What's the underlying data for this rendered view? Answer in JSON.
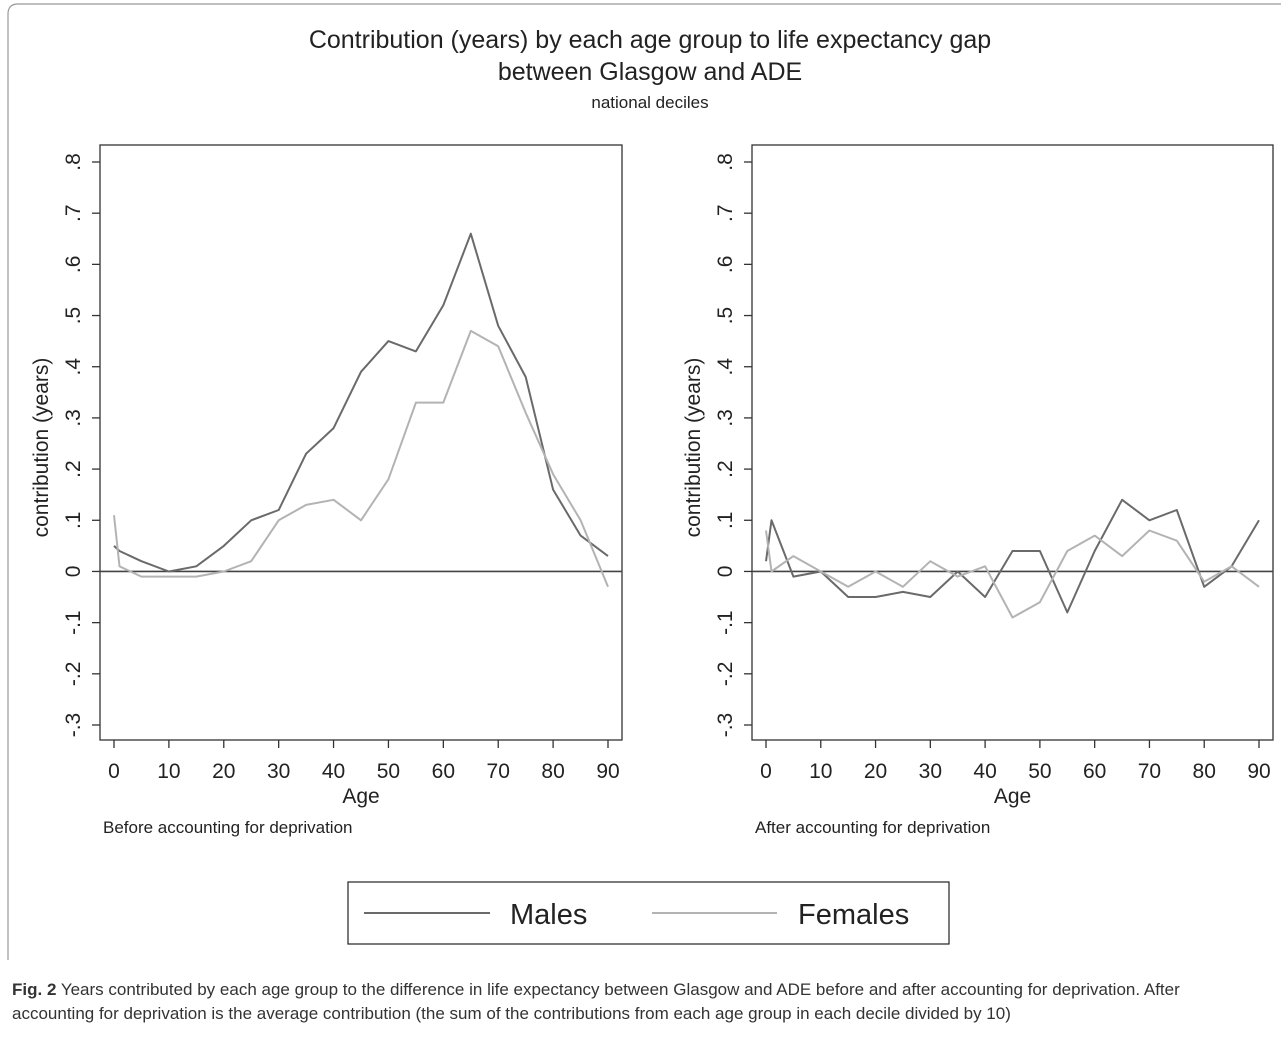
{
  "title_line1": "Contribution (years) by each age group to life expectancy gap",
  "title_line2": "between Glasgow and ADE",
  "subtitle": "national deciles",
  "legend": {
    "males": "Males",
    "females": "Females"
  },
  "caption": {
    "label": "Fig. 2",
    "text": " Years contributed by each age group to the difference in life expectancy between Glasgow and ADE before and after accounting for deprivation. After accounting for deprivation is the average contribution (the sum of the contributions from each age group in each decile divided by 10)"
  },
  "colors": {
    "males": "#6a6a6a",
    "females": "#b3b3b3",
    "zero_line": "#444444",
    "axis": "#333333"
  },
  "chart_data": [
    {
      "type": "line",
      "title": "Before accounting for deprivation",
      "xlabel": "Age",
      "ylabel": "contribution (years)",
      "xlim": [
        0,
        90
      ],
      "ylim": [
        -0.3,
        0.8
      ],
      "x_ticks": [
        "0",
        "10",
        "20",
        "30",
        "40",
        "50",
        "60",
        "70",
        "80",
        "90"
      ],
      "y_ticks": [
        "-.3",
        "-.2",
        "-.1",
        "0",
        ".1",
        ".2",
        ".3",
        ".4",
        ".5",
        ".6",
        ".7",
        ".8"
      ],
      "grid": false,
      "legend_position": "bottom",
      "series": [
        {
          "name": "Males",
          "x": [
            0,
            1,
            5,
            10,
            15,
            20,
            25,
            30,
            35,
            40,
            45,
            50,
            55,
            60,
            65,
            70,
            75,
            80,
            85,
            90
          ],
          "y": [
            0.05,
            0.04,
            0.02,
            0.0,
            0.01,
            0.05,
            0.1,
            0.12,
            0.23,
            0.28,
            0.39,
            0.45,
            0.43,
            0.52,
            0.66,
            0.48,
            0.38,
            0.16,
            0.07,
            0.03
          ]
        },
        {
          "name": "Females",
          "x": [
            0,
            1,
            5,
            10,
            15,
            20,
            25,
            30,
            35,
            40,
            45,
            50,
            55,
            60,
            65,
            70,
            75,
            80,
            85,
            90
          ],
          "y": [
            0.11,
            0.01,
            -0.01,
            -0.01,
            -0.01,
            0.0,
            0.02,
            0.1,
            0.13,
            0.14,
            0.1,
            0.18,
            0.33,
            0.33,
            0.47,
            0.44,
            0.31,
            0.19,
            0.1,
            -0.03
          ]
        }
      ]
    },
    {
      "type": "line",
      "title": "After accounting for deprivation",
      "xlabel": "Age",
      "ylabel": "contribution (years)",
      "xlim": [
        0,
        90
      ],
      "ylim": [
        -0.3,
        0.8
      ],
      "x_ticks": [
        "0",
        "10",
        "20",
        "30",
        "40",
        "50",
        "60",
        "70",
        "80",
        "90"
      ],
      "y_ticks": [
        "-.3",
        "-.2",
        "-.1",
        "0",
        ".1",
        ".2",
        ".3",
        ".4",
        ".5",
        ".6",
        ".7",
        ".8"
      ],
      "grid": false,
      "legend_position": "bottom",
      "series": [
        {
          "name": "Males",
          "x": [
            0,
            1,
            5,
            10,
            15,
            20,
            25,
            30,
            35,
            40,
            45,
            50,
            55,
            60,
            65,
            70,
            75,
            80,
            85,
            90
          ],
          "y": [
            0.02,
            0.1,
            -0.01,
            0.0,
            -0.05,
            -0.05,
            -0.04,
            -0.05,
            0.0,
            -0.05,
            0.04,
            0.04,
            -0.08,
            0.04,
            0.14,
            0.1,
            0.12,
            -0.03,
            0.01,
            0.1
          ]
        },
        {
          "name": "Females",
          "x": [
            0,
            1,
            5,
            10,
            15,
            20,
            25,
            30,
            35,
            40,
            45,
            50,
            55,
            60,
            65,
            70,
            75,
            80,
            85,
            90
          ],
          "y": [
            0.08,
            0.0,
            0.03,
            0.0,
            -0.03,
            0.0,
            -0.03,
            0.02,
            -0.01,
            0.01,
            -0.09,
            -0.06,
            0.04,
            0.07,
            0.03,
            0.08,
            0.06,
            -0.02,
            0.01,
            -0.03
          ]
        }
      ]
    }
  ]
}
